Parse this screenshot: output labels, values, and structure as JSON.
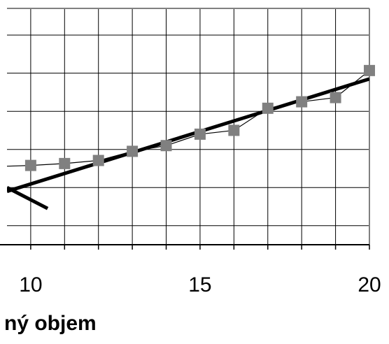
{
  "chart_data": {
    "type": "line",
    "title": "",
    "xlabel": "ný objem",
    "ylabel": "",
    "xlim": [
      9.3,
      20
    ],
    "ylim": [
      -0.5,
      5.7
    ],
    "x_ticks": [
      10,
      15,
      20
    ],
    "x_minor_ticks": [
      10,
      11,
      12,
      13,
      14,
      15,
      16,
      17,
      18,
      19,
      20
    ],
    "y_gridlines": [
      0,
      1,
      2,
      3,
      4,
      5
    ],
    "grid": true,
    "series": [
      {
        "color": "#808080",
        "marker": "square",
        "x": [
          10,
          11,
          12,
          13,
          14,
          15,
          16,
          17,
          18,
          19,
          20
        ],
        "y": [
          1.58,
          1.63,
          1.71,
          1.95,
          2.1,
          2.4,
          2.5,
          3.08,
          3.25,
          3.36,
          4.07
        ]
      },
      {
        "color": "#000000",
        "style": "trendline",
        "x": [
          9.3,
          20
        ],
        "y": [
          0.9,
          3.85
        ]
      },
      {
        "color": "#000000",
        "style": "line",
        "x": [
          9.3,
          10.5
        ],
        "y": [
          1.0,
          0.45
        ]
      }
    ]
  }
}
